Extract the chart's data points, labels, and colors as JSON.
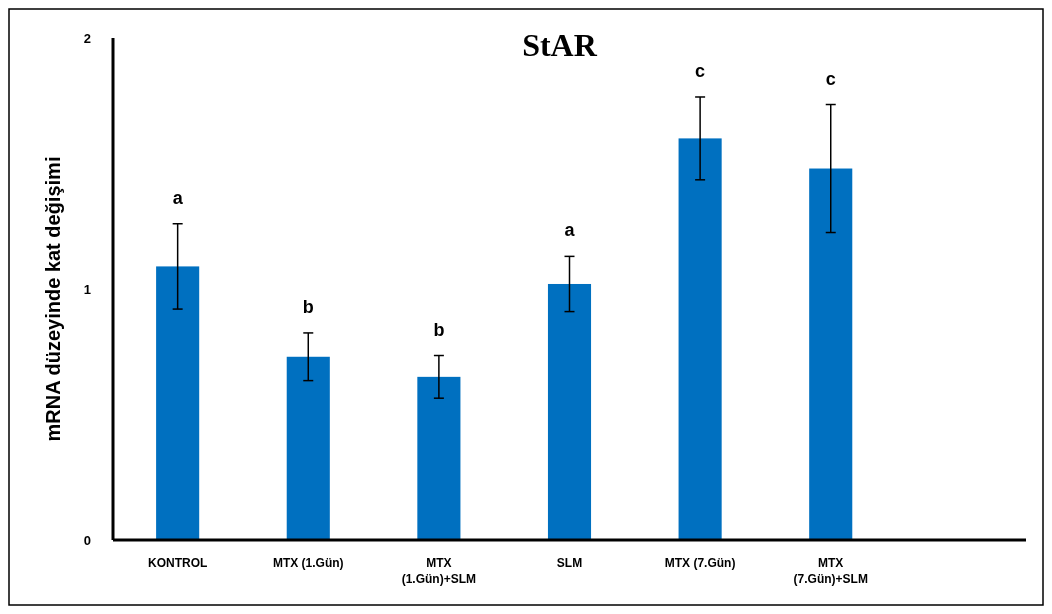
{
  "chart_data": {
    "type": "bar",
    "title": "StAR",
    "ylabel": "mRNA düzeyinde kat değişimi",
    "categories": [
      "KONTROL",
      "MTX (1.Gün)",
      "MTX\n(1.Gün)+SLM",
      "SLM",
      "MTX (7.Gün)",
      "MTX\n(7.Gün)+SLM",
      null
    ],
    "values": [
      1.09,
      0.73,
      0.65,
      1.02,
      1.6,
      1.48,
      null
    ],
    "errors": [
      0.17,
      0.095,
      0.085,
      0.11,
      0.165,
      0.255,
      null
    ],
    "color": "#0070c0",
    "ylim": [
      0,
      2
    ],
    "yticks": [
      0,
      1,
      2
    ],
    "grid": false,
    "annotations": [
      "a",
      "b",
      "b",
      "a",
      "c",
      "c"
    ]
  }
}
